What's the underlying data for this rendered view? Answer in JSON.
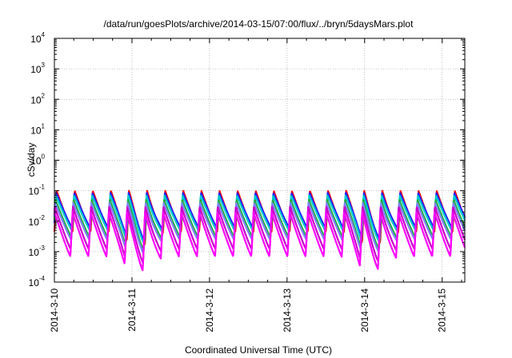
{
  "chart_data": {
    "type": "line",
    "title": "/data/run/goesPlots/archive/2014-03-15/07:00/flux/../bryn/5daysMars.plot",
    "xlabel": "Coordinated Universal Time (UTC)",
    "ylabel": "cSv/day",
    "yscale": "log",
    "ylim": [
      0.0001,
      10000
    ],
    "xlim": [
      "2014-03-10T00:00",
      "2014-03-15T07:00"
    ],
    "grid": true,
    "x_ticks": [
      "2014-3-10",
      "2014-3-11",
      "2014-3-12",
      "2014-3-13",
      "2014-3-14",
      "2014-3-15"
    ],
    "y_ticks": [
      {
        "base": "10",
        "exp": "-4"
      },
      {
        "base": "10",
        "exp": "-3"
      },
      {
        "base": "10",
        "exp": "-2"
      },
      {
        "base": "10",
        "exp": "-1"
      },
      {
        "base": "10",
        "exp": "0"
      },
      {
        "base": "10",
        "exp": "1"
      },
      {
        "base": "10",
        "exp": "2"
      },
      {
        "base": "10",
        "exp": "3"
      },
      {
        "base": "10",
        "exp": "4"
      }
    ],
    "pattern": {
      "cycle_hours": 5.6,
      "cycles_per_day": 4.3,
      "dip_days": [
        "2014-3-11",
        "2014-3-14"
      ]
    },
    "series": [
      {
        "color": "#ff0000",
        "peak": 0.1,
        "trough": 0.0045
      },
      {
        "color": "#2020ff",
        "peak": 0.085,
        "trough": 0.006
      },
      {
        "color": "#00cccc",
        "peak": 0.07,
        "trough": 0.005
      },
      {
        "color": "#20b040",
        "peak": 0.05,
        "trough": 0.003
      },
      {
        "color": "#8080ff",
        "peak": 0.04,
        "trough": 0.0025
      },
      {
        "color": "#cc00cc",
        "peak": 0.03,
        "trough": 0.0012
      },
      {
        "color": "#ff00ff",
        "peak": 0.02,
        "trough": 0.0007
      }
    ]
  }
}
